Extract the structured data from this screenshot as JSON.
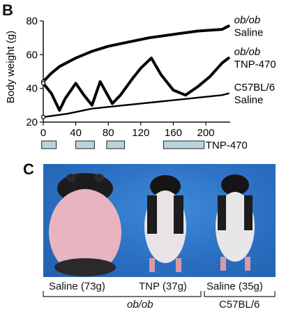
{
  "panel_b": {
    "letter": "B"
  },
  "panel_c": {
    "letter": "C"
  },
  "chart_data": {
    "type": "line",
    "ylabel": "Body weight (g)",
    "xlabel": "",
    "xlim": [
      0,
      230
    ],
    "ylim": [
      20,
      80
    ],
    "xticks": [
      0,
      40,
      80,
      120,
      160,
      200
    ],
    "yticks": [
      20,
      40,
      60,
      80
    ],
    "series": [
      {
        "name": "ob/ob Saline",
        "name_lines": [
          "ob/ob",
          "Saline"
        ],
        "italic_first_line": true,
        "style": "thick",
        "x": [
          0,
          10,
          20,
          40,
          60,
          80,
          100,
          130,
          160,
          190,
          220,
          228
        ],
        "y": [
          44,
          49,
          53,
          58,
          62,
          65,
          67,
          70,
          72,
          74,
          75,
          77
        ]
      },
      {
        "name": "ob/ob TNP-470",
        "name_lines": [
          "ob/ob",
          "TNP-470"
        ],
        "italic_first_line": true,
        "style": "thick",
        "x": [
          0,
          10,
          20,
          27,
          40,
          50,
          60,
          70,
          85,
          95,
          110,
          120,
          133,
          145,
          160,
          175,
          190,
          205,
          220,
          228
        ],
        "y": [
          43,
          37,
          27,
          34,
          43,
          36,
          30,
          44,
          31,
          36,
          46,
          52,
          58,
          48,
          39,
          36,
          41,
          47,
          55,
          58
        ]
      },
      {
        "name": "C57BL/6 Saline",
        "name_lines": [
          "C57BL/6",
          "Saline"
        ],
        "italic_first_line": false,
        "style": "thin",
        "x": [
          0,
          30,
          60,
          100,
          140,
          180,
          220,
          228
        ],
        "y": [
          23,
          25,
          28,
          30,
          32,
          34,
          36,
          37
        ]
      }
    ],
    "treatment_bars": {
      "label": "TNP-470",
      "intervals": [
        [
          -2,
          16
        ],
        [
          40,
          63
        ],
        [
          78,
          100
        ],
        [
          148,
          198
        ]
      ],
      "color": "#b9d3df"
    }
  },
  "photo": {
    "mice": [
      {
        "caption": "Saline (73g)",
        "name": "obese-saline-mouse"
      },
      {
        "caption": "TNP (37g)",
        "name": "tnp-treated-mouse"
      },
      {
        "caption": "Saline (35g)",
        "name": "lean-control-mouse"
      }
    ]
  },
  "groups": {
    "obob": "ob/ob",
    "c57": "C57BL/6"
  }
}
